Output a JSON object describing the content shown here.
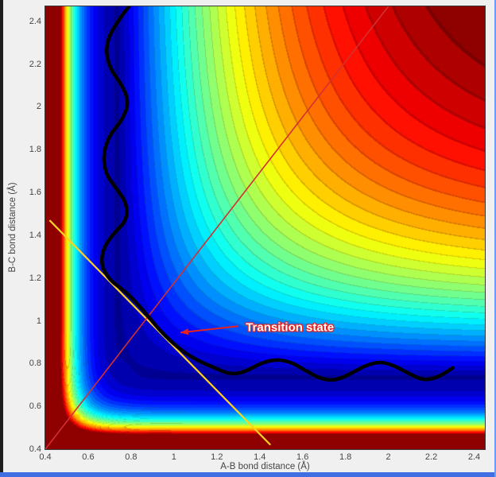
{
  "window": {
    "bg": "#f0f0f0",
    "left_edge_color": "#1e1e1e",
    "bottom_bar_color": "#3f6fe0",
    "right_edge_color": "#6b9bff"
  },
  "chart_data": {
    "type": "heatmap",
    "title": "",
    "description": "Filled contour plot (jet colormap) of a potential energy surface for the A-B-C reaction with a wavy black minimum-energy reaction path, a red diagonal line, a yellow cut line through the saddle point, and a 'Transition state' annotation.",
    "xlabel": "A-B bond distance (Å)",
    "ylabel": "B-C bond distance (Å)",
    "xlim": [
      0.4,
      2.45
    ],
    "ylim": [
      0.4,
      2.47
    ],
    "xtick_values": [
      0.4,
      0.6,
      0.8,
      1,
      1.2,
      1.4,
      1.6,
      1.8,
      2,
      2.2,
      2.4
    ],
    "xtick_labels": [
      "0.4",
      "0.6",
      "0.8",
      "1",
      "1.2",
      "1.4",
      "1.6",
      "1.8",
      "2",
      "2.2",
      "2.4"
    ],
    "ytick_values": [
      0.4,
      0.6,
      0.8,
      1,
      1.2,
      1.4,
      1.6,
      1.8,
      2,
      2.2,
      2.4
    ],
    "ytick_labels": [
      "0.4",
      "0.6",
      "0.8",
      "1",
      "1.2",
      "1.4",
      "1.6",
      "1.8",
      "2",
      "2.2",
      "2.4"
    ],
    "colormap": "jet",
    "levels": 32,
    "surface": {
      "model": "repulsive exponential walls plus product-of-Morse stretch term",
      "re": 0.74,
      "a": 1.6,
      "D": 1.15,
      "wall_r0": 0.4,
      "wall_decay": 0.075,
      "wall_height": 2.5,
      "vmax": 1.0
    },
    "overlays": {
      "reaction_path": {
        "name": "minimum-energy reaction path (wavy)",
        "color": "#000000",
        "width": 4.5,
        "points": [
          [
            0.79,
            2.47
          ],
          [
            0.72,
            2.38
          ],
          [
            0.68,
            2.28
          ],
          [
            0.7,
            2.18
          ],
          [
            0.76,
            2.1
          ],
          [
            0.79,
            2.02
          ],
          [
            0.76,
            1.94
          ],
          [
            0.7,
            1.87
          ],
          [
            0.67,
            1.78
          ],
          [
            0.68,
            1.69
          ],
          [
            0.73,
            1.62
          ],
          [
            0.78,
            1.55
          ],
          [
            0.78,
            1.47
          ],
          [
            0.72,
            1.41
          ],
          [
            0.67,
            1.34
          ],
          [
            0.66,
            1.26
          ],
          [
            0.7,
            1.19
          ],
          [
            0.77,
            1.14
          ],
          [
            0.83,
            1.08
          ],
          [
            0.88,
            1.02
          ],
          [
            0.93,
            0.96
          ],
          [
            0.99,
            0.9
          ],
          [
            1.05,
            0.85
          ],
          [
            1.12,
            0.81
          ],
          [
            1.19,
            0.78
          ],
          [
            1.26,
            0.75
          ],
          [
            1.33,
            0.76
          ],
          [
            1.4,
            0.8
          ],
          [
            1.47,
            0.82
          ],
          [
            1.54,
            0.81
          ],
          [
            1.61,
            0.77
          ],
          [
            1.68,
            0.73
          ],
          [
            1.75,
            0.72
          ],
          [
            1.82,
            0.75
          ],
          [
            1.89,
            0.79
          ],
          [
            1.96,
            0.81
          ],
          [
            2.03,
            0.79
          ],
          [
            2.1,
            0.75
          ],
          [
            2.17,
            0.72
          ],
          [
            2.24,
            0.74
          ],
          [
            2.3,
            0.78
          ]
        ]
      },
      "diagonal_line": {
        "color": "#d43030",
        "width": 1.6,
        "from": [
          0.4,
          0.4
        ],
        "to": [
          2.0,
          2.47
        ]
      },
      "cut_line": {
        "color": "#ffd21f",
        "width": 2.2,
        "from": [
          0.42,
          1.47
        ],
        "to": [
          1.45,
          0.42
        ]
      },
      "annotation": {
        "text": "Transition state",
        "text_color": "#ffffff",
        "outline_color": "#e82020",
        "arrow_color": "#e82020",
        "arrow_from": [
          1.3,
          0.975
        ],
        "arrow_to": [
          1.03,
          0.945
        ],
        "label_pos": [
          1.335,
          0.97
        ],
        "font_size": 15
      }
    }
  }
}
